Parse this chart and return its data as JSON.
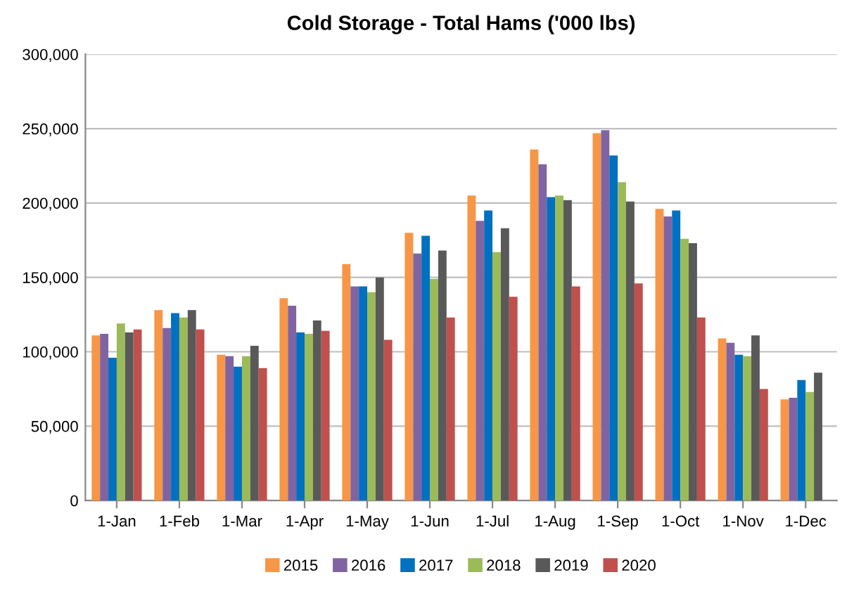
{
  "chart_data": {
    "type": "bar",
    "title": "Cold Storage - Total Hams ('000 lbs)",
    "categories": [
      "1-Jan",
      "1-Feb",
      "1-Mar",
      "1-Apr",
      "1-May",
      "1-Jun",
      "1-Jul",
      "1-Aug",
      "1-Sep",
      "1-Oct",
      "1-Nov",
      "1-Dec"
    ],
    "series": [
      {
        "name": "2015",
        "color": "#f79646",
        "values": [
          111000,
          128000,
          98000,
          136000,
          159000,
          180000,
          205000,
          236000,
          247000,
          196000,
          109000,
          68000
        ]
      },
      {
        "name": "2016",
        "color": "#8064a2",
        "values": [
          112000,
          116000,
          97000,
          131000,
          144000,
          166000,
          188000,
          226000,
          249000,
          191000,
          106000,
          69000
        ]
      },
      {
        "name": "2017",
        "color": "#0070c0",
        "values": [
          96000,
          126000,
          90000,
          113000,
          144000,
          178000,
          195000,
          204000,
          232000,
          195000,
          98000,
          81000
        ]
      },
      {
        "name": "2018",
        "color": "#9bbb59",
        "values": [
          119000,
          123000,
          97000,
          112000,
          140000,
          149000,
          167000,
          205000,
          214000,
          176000,
          97000,
          73000
        ]
      },
      {
        "name": "2019",
        "color": "#595959",
        "values": [
          113000,
          128000,
          104000,
          121000,
          150000,
          168000,
          183000,
          202000,
          201000,
          173000,
          111000,
          86000
        ]
      },
      {
        "name": "2020",
        "color": "#c0504d",
        "values": [
          115000,
          115000,
          89000,
          114000,
          108000,
          123000,
          137000,
          144000,
          146000,
          123000,
          75000,
          null
        ]
      }
    ],
    "ylim": [
      0,
      300000
    ],
    "yticks": [
      {
        "value": 0,
        "label": "0"
      },
      {
        "value": 50000,
        "label": "50,000"
      },
      {
        "value": 100000,
        "label": "100,000"
      },
      {
        "value": 150000,
        "label": "150,000"
      },
      {
        "value": 200000,
        "label": "200,000"
      },
      {
        "value": 250000,
        "label": "250,000"
      },
      {
        "value": 300000,
        "label": "300,000"
      }
    ],
    "grid": "y",
    "legend": "bottom"
  }
}
